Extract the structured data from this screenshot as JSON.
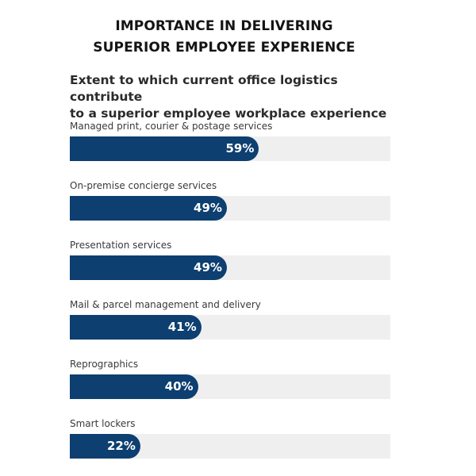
{
  "chart_data": {
    "type": "bar",
    "orientation": "horizontal",
    "title": [
      "IMPORTANCE IN DELIVERING",
      "SUPERIOR EMPLOYEE EXPERIENCE"
    ],
    "subtitle": [
      "Extent to which current office logistics contribute",
      "to a superior employee workplace experience"
    ],
    "categories": [
      "Managed print, courier & postage services",
      "On-premise concierge services",
      "Presentation services",
      "Mail & parcel management and delivery",
      "Reprographics",
      "Smart lockers"
    ],
    "values": [
      59,
      49,
      49,
      41,
      40,
      22
    ],
    "value_labels": [
      "59%",
      "49%",
      "49%",
      "41%",
      "40%",
      "22%"
    ],
    "xlim": [
      0,
      100
    ],
    "grid": false,
    "legend": "none",
    "colors": {
      "bar": "#0d3f70",
      "track": "#efefef",
      "value_text": "#ffffff"
    }
  }
}
